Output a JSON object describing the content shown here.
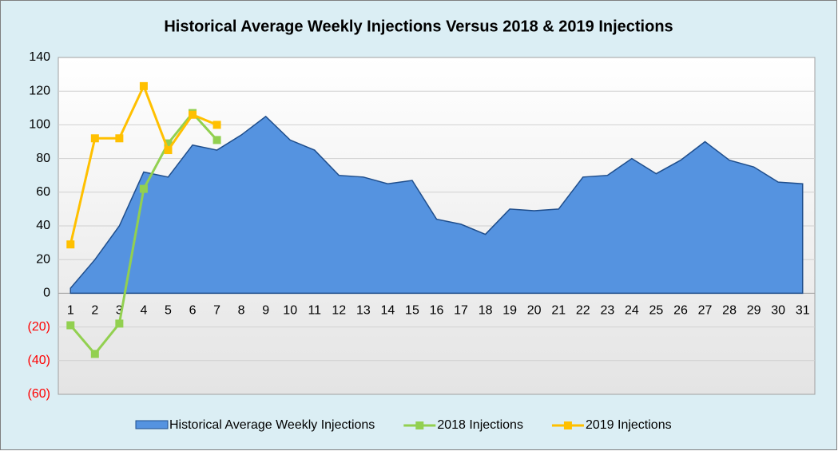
{
  "chart_data": {
    "type": "area_line",
    "title": "Historical Average Weekly Injections Versus 2018 & 2019 Injections",
    "categories": [
      "1",
      "2",
      "3",
      "4",
      "5",
      "6",
      "7",
      "8",
      "9",
      "10",
      "11",
      "12",
      "13",
      "14",
      "15",
      "16",
      "17",
      "18",
      "19",
      "20",
      "21",
      "22",
      "23",
      "24",
      "25",
      "26",
      "27",
      "28",
      "29",
      "30",
      "31"
    ],
    "series": [
      {
        "name": "Historical Average Weekly Injections",
        "color": "#5593e0",
        "kind": "area",
        "values": [
          3,
          20,
          40,
          72,
          69,
          88,
          85,
          94,
          105,
          91,
          85,
          70,
          69,
          65,
          67,
          44,
          41,
          35,
          50,
          49,
          50,
          69,
          70,
          80,
          71,
          79,
          90,
          79,
          75,
          66,
          65
        ]
      },
      {
        "name": "2018 Injections",
        "color": "#92d050",
        "kind": "line",
        "values": [
          -19,
          -36,
          -18,
          62,
          89,
          107,
          91,
          null,
          null,
          null,
          null,
          null,
          null,
          null,
          null,
          null,
          null,
          null,
          null,
          null,
          null,
          null,
          null,
          null,
          null,
          null,
          null,
          null,
          null,
          null,
          null
        ]
      },
      {
        "name": "2019 Injections",
        "color": "#ffc000",
        "kind": "line",
        "values": [
          29,
          92,
          92,
          123,
          85,
          106,
          100,
          null,
          null,
          null,
          null,
          null,
          null,
          null,
          null,
          null,
          null,
          null,
          null,
          null,
          null,
          null,
          null,
          null,
          null,
          null,
          null,
          null,
          null,
          null,
          null
        ]
      }
    ],
    "ylim": [
      -60,
      140
    ],
    "yticks": [
      {
        "value": -60,
        "label": "(60)"
      },
      {
        "value": -40,
        "label": "(40)"
      },
      {
        "value": -20,
        "label": "(20)"
      },
      0,
      20,
      40,
      60,
      80,
      100,
      120,
      140
    ],
    "negative_tick_color": "#ff0000",
    "grid": true,
    "legend": "bottom"
  }
}
